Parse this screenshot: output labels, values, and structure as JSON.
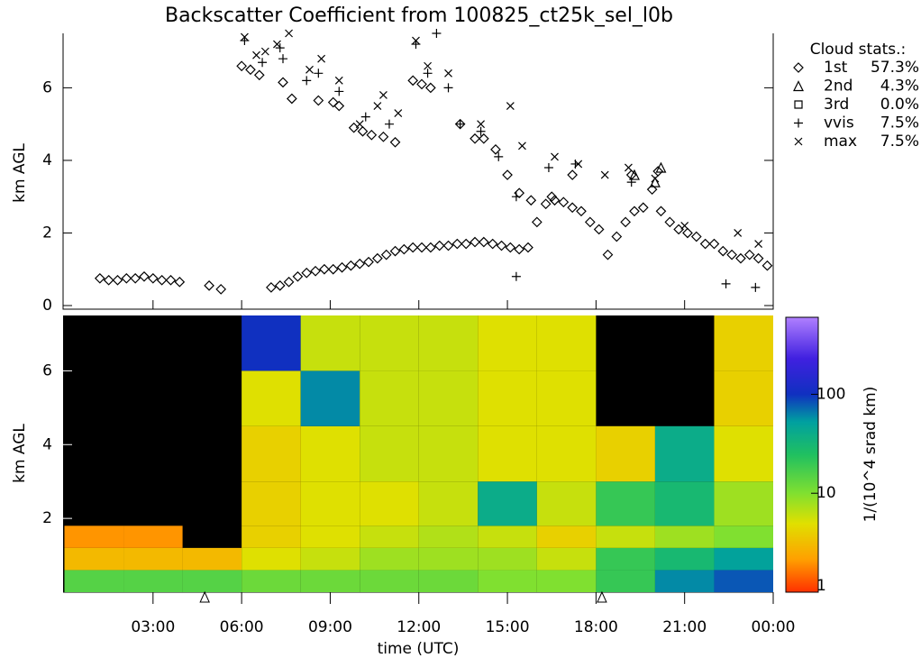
{
  "chart_data": [
    {
      "type": "scatter",
      "title": "Backscatter Coefficient from 100825_ct25k_sel_l0b",
      "ylabel": "km AGL",
      "xlim": [
        0,
        24
      ],
      "ylim": [
        0,
        7.5
      ],
      "yticks": [
        0,
        2,
        4,
        6
      ],
      "legend_title": "Cloud stats.:",
      "series": [
        {
          "name": "1st",
          "marker": "diamond",
          "color": "#000000",
          "share": 57.3,
          "share_label": "57.3%",
          "x": [
            1.2,
            1.5,
            1.8,
            2.1,
            2.4,
            2.7,
            3.0,
            3.3,
            3.6,
            3.9,
            4.9,
            5.3,
            7.0,
            7.3,
            7.6,
            7.9,
            8.2,
            8.5,
            8.8,
            9.1,
            9.4,
            9.7,
            10.0,
            10.3,
            10.6,
            10.9,
            11.2,
            11.5,
            11.8,
            12.1,
            12.4,
            12.7,
            13.0,
            13.3,
            13.6,
            13.9,
            14.2,
            14.5,
            14.8,
            15.1,
            15.4,
            15.7,
            16.0,
            16.3,
            16.6,
            16.9,
            17.2,
            17.5,
            17.8,
            18.1,
            18.4,
            18.7,
            19.0,
            19.3,
            19.6,
            19.9,
            20.2,
            20.5,
            20.8,
            21.1,
            21.4,
            21.7,
            22.0,
            22.3,
            22.6,
            22.9,
            23.2,
            23.5,
            23.8,
            6.0,
            6.3,
            6.6,
            7.4,
            7.7,
            8.6,
            9.1,
            9.3,
            9.8,
            10.1,
            10.4,
            10.8,
            11.2,
            11.8,
            12.1,
            12.4,
            13.4,
            13.9,
            14.2,
            14.6,
            15.0,
            15.4,
            15.8,
            16.5,
            17.2,
            19.2,
            20.1
          ],
          "values": [
            0.75,
            0.7,
            0.7,
            0.75,
            0.75,
            0.8,
            0.75,
            0.7,
            0.7,
            0.65,
            0.55,
            0.45,
            0.5,
            0.55,
            0.65,
            0.8,
            0.9,
            0.95,
            1.0,
            1.0,
            1.05,
            1.1,
            1.15,
            1.2,
            1.3,
            1.4,
            1.5,
            1.55,
            1.6,
            1.6,
            1.6,
            1.65,
            1.65,
            1.7,
            1.7,
            1.75,
            1.75,
            1.7,
            1.65,
            1.6,
            1.55,
            1.6,
            2.3,
            2.8,
            2.9,
            2.85,
            2.7,
            2.6,
            2.3,
            2.1,
            1.4,
            1.9,
            2.3,
            2.6,
            2.7,
            3.2,
            2.6,
            2.3,
            2.1,
            2.0,
            1.9,
            1.7,
            1.7,
            1.5,
            1.4,
            1.3,
            1.4,
            1.3,
            1.1,
            6.6,
            6.5,
            6.35,
            6.15,
            5.7,
            5.65,
            5.6,
            5.5,
            4.9,
            4.8,
            4.7,
            4.65,
            4.5,
            6.2,
            6.1,
            6.0,
            5.0,
            4.6,
            4.6,
            4.3,
            3.6,
            3.1,
            2.9,
            3.0,
            3.6,
            3.6,
            3.7
          ]
        },
        {
          "name": "2nd",
          "marker": "triangle",
          "color": "#000000",
          "share": 4.3,
          "share_label": "4.3%",
          "x": [
            19.3,
            20.0,
            20.2
          ],
          "values": [
            3.6,
            3.4,
            3.8
          ]
        },
        {
          "name": "3rd",
          "marker": "square",
          "color": "#000000",
          "share": 0.0,
          "share_label": "0.0%",
          "x": [],
          "values": []
        },
        {
          "name": "vvis",
          "marker": "plus",
          "color": "#000000",
          "share": 7.5,
          "share_label": "7.5%",
          "x": [
            6.1,
            6.7,
            7.3,
            7.4,
            8.2,
            8.6,
            9.3,
            10.2,
            11.0,
            11.9,
            12.3,
            12.6,
            13.0,
            13.4,
            14.1,
            14.7,
            15.3,
            16.4,
            17.3,
            19.2,
            22.4,
            23.4,
            15.3
          ],
          "values": [
            7.3,
            6.7,
            7.1,
            6.8,
            6.2,
            6.4,
            5.9,
            5.2,
            5.0,
            7.2,
            6.4,
            7.5,
            6.0,
            5.0,
            4.8,
            4.1,
            3.0,
            3.8,
            3.9,
            3.4,
            0.6,
            0.5,
            0.8
          ]
        },
        {
          "name": "max",
          "marker": "cross",
          "color": "#000000",
          "share": 7.5,
          "share_label": "7.5%",
          "x": [
            6.1,
            6.5,
            6.8,
            7.2,
            7.6,
            8.3,
            8.7,
            9.3,
            10.0,
            10.6,
            10.8,
            11.3,
            11.9,
            12.3,
            13.0,
            14.1,
            15.1,
            15.5,
            16.6,
            17.4,
            18.3,
            19.1,
            20.0,
            21.0,
            22.8,
            23.5
          ],
          "values": [
            7.4,
            6.9,
            7.0,
            7.2,
            7.5,
            6.5,
            6.8,
            6.2,
            5.0,
            5.5,
            5.8,
            5.3,
            7.3,
            6.6,
            6.4,
            5.0,
            5.5,
            4.4,
            4.1,
            3.9,
            3.6,
            3.8,
            3.5,
            2.2,
            2.0,
            1.7
          ]
        }
      ]
    },
    {
      "type": "heatmap",
      "ylabel": "km AGL",
      "xlabel": "time (UTC)",
      "xlim": [
        0,
        24
      ],
      "xticks": [
        {
          "value": 3,
          "label": "03:00"
        },
        {
          "value": 6,
          "label": "06:00"
        },
        {
          "value": 9,
          "label": "09:00"
        },
        {
          "value": 12,
          "label": "12:00"
        },
        {
          "value": 15,
          "label": "15:00"
        },
        {
          "value": 18,
          "label": "18:00"
        },
        {
          "value": 21,
          "label": "21:00"
        },
        {
          "value": 24,
          "label": "00:00"
        }
      ],
      "ylim": [
        0,
        7.5
      ],
      "yticks": [
        2,
        4,
        6
      ],
      "x_edges": [
        0,
        2,
        4,
        6,
        8,
        10,
        12,
        14,
        16,
        18,
        20,
        22,
        24
      ],
      "y_edges": [
        0,
        0.6,
        1.2,
        1.8,
        3,
        4.5,
        6,
        7.5
      ],
      "z": [
        [
          15,
          15,
          15,
          12,
          12,
          12,
          12,
          10,
          10,
          20,
          60,
          80
        ],
        [
          3,
          3,
          3,
          5,
          6,
          8,
          8,
          8,
          6,
          20,
          30,
          50
        ],
        [
          2,
          2,
          null,
          4,
          5,
          6,
          7,
          6,
          4,
          6,
          8,
          10
        ],
        [
          null,
          null,
          null,
          4,
          5,
          5,
          6,
          40,
          6,
          20,
          30,
          8
        ],
        [
          null,
          null,
          null,
          4,
          5,
          6,
          6,
          5,
          5,
          4,
          40,
          5
        ],
        [
          null,
          null,
          null,
          5,
          60,
          6,
          6,
          5,
          5,
          null,
          null,
          4
        ],
        [
          null,
          null,
          null,
          100,
          6,
          6,
          6,
          5,
          5,
          null,
          null,
          4
        ]
      ],
      "colorbar_label": "1/(10^4 srad km)",
      "clim": [
        1,
        600
      ],
      "cticks": [
        1,
        10,
        100
      ],
      "color_scale": "log",
      "markers_x": [
        4.75,
        18.2
      ]
    }
  ]
}
